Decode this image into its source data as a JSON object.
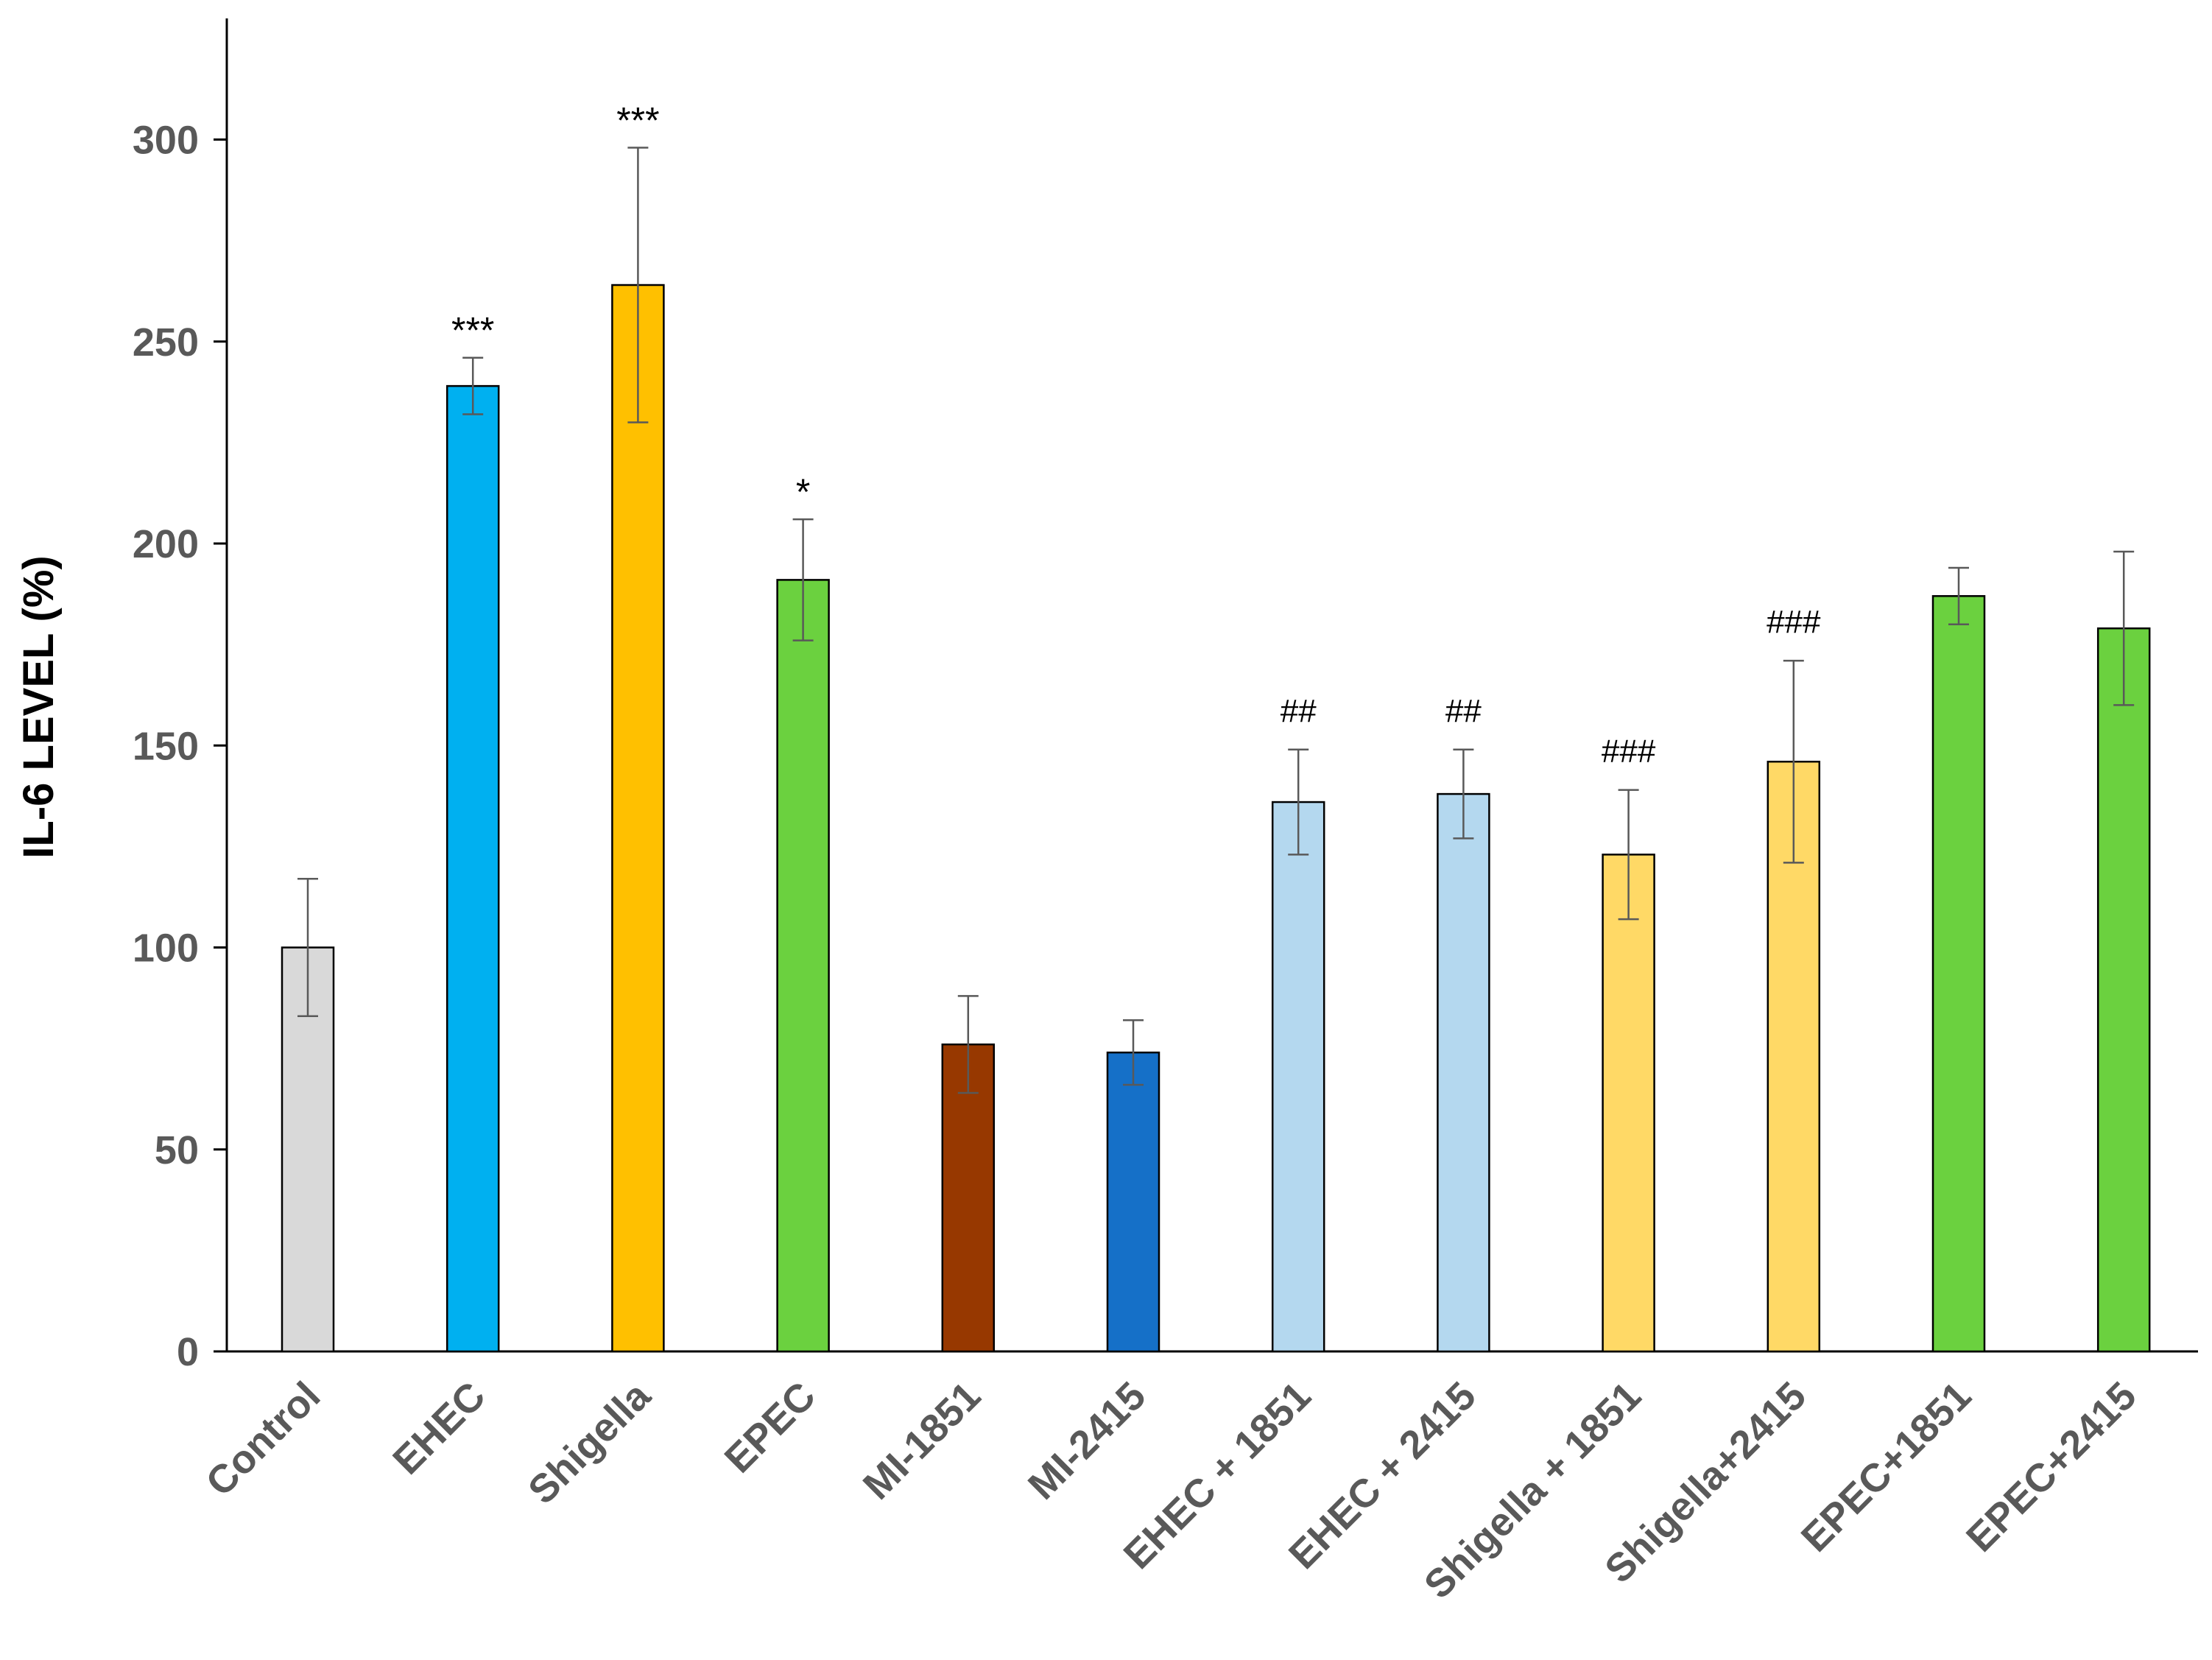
{
  "chart_data": {
    "type": "bar",
    "title": "",
    "xlabel": "",
    "ylabel": "IL-6 LEVEL (%)",
    "ylim": [
      0,
      330
    ],
    "yticks": [
      0,
      50,
      100,
      150,
      200,
      250,
      300
    ],
    "grid": false,
    "legend": "none",
    "categories": [
      "Control",
      "EHEC",
      "Shigella",
      "EPEC",
      "MI-1851",
      "MI-2415",
      "EHEC + 1851",
      "EHEC + 2415",
      "Shigella + 1851",
      "Shigella+2415",
      "EPEC+1851",
      "EPEC+2415"
    ],
    "values": [
      100,
      239,
      264,
      191,
      76,
      74,
      136,
      138,
      123,
      146,
      187,
      179
    ],
    "errors": [
      17,
      7,
      34,
      15,
      12,
      8,
      13,
      11,
      16,
      25,
      7,
      19
    ],
    "annotations": [
      "",
      "***",
      "***",
      "*",
      "",
      "",
      "##",
      "##",
      "###",
      "###",
      "",
      ""
    ],
    "colors": [
      "#d9d9d9",
      "#00b0f0",
      "#ffc000",
      "#6bd13f",
      "#973800",
      "#1570c8",
      "#b4d8ef",
      "#b4d8ef",
      "#ffd966",
      "#ffd966",
      "#6bd13f",
      "#6bd13f"
    ]
  }
}
